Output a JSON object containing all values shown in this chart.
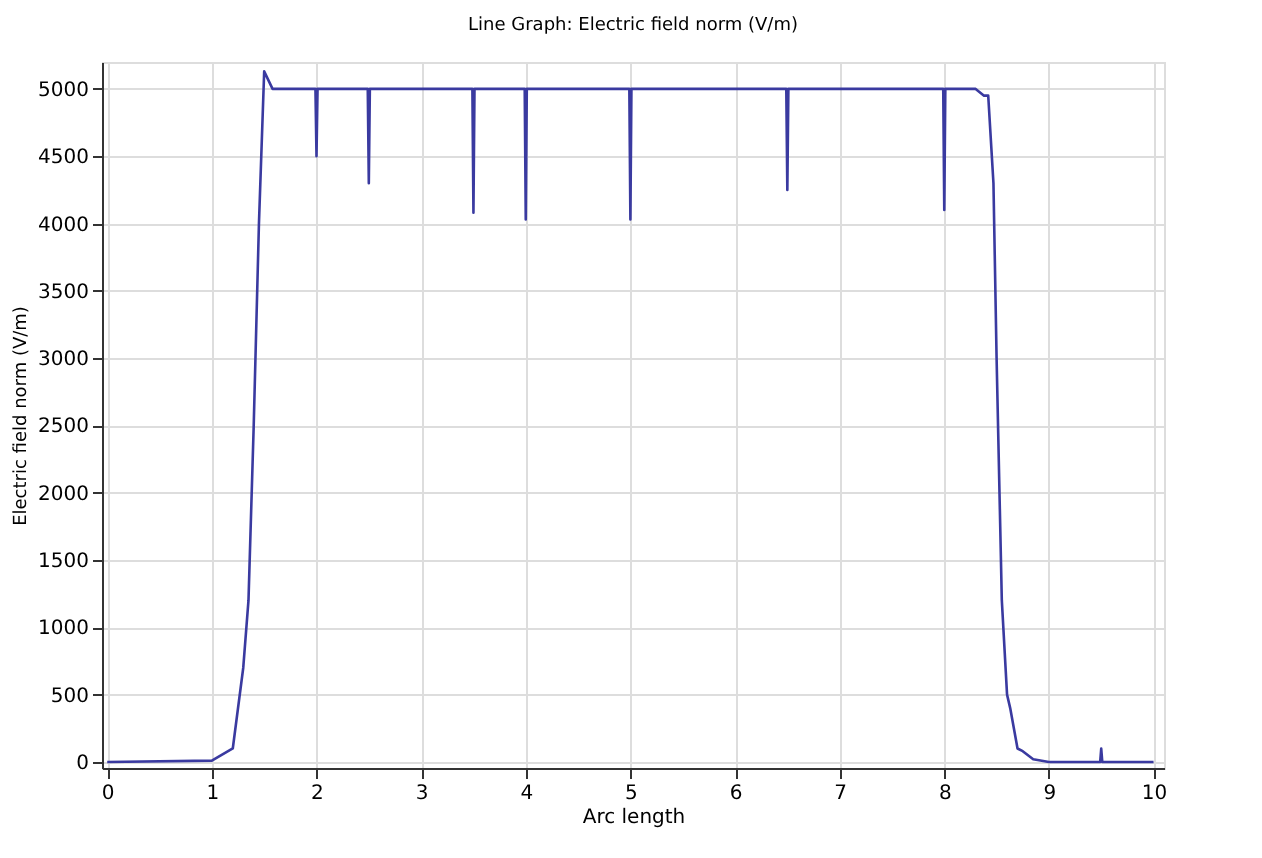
{
  "chart_data": {
    "type": "line",
    "title": "Line Graph: Electric field norm (V/m)",
    "xlabel": "Arc length",
    "ylabel": "Electric field norm (V/m)",
    "series": [
      {
        "color": "#3a3aa0",
        "x": [
          0,
          1,
          1.2,
          1.3,
          1.35,
          1.4,
          1.45,
          1.5,
          1.58,
          1.99,
          2,
          2.01,
          2.49,
          2.5,
          2.51,
          3.49,
          3.5,
          3.51,
          3.99,
          4,
          4.01,
          4.99,
          5,
          5.01,
          6.49,
          6.5,
          6.51,
          7.99,
          8,
          8.01,
          8.3,
          8.38,
          8.42,
          8.47,
          8.5,
          8.55,
          8.6,
          8.63,
          8.7,
          8.75,
          8.85,
          9,
          9.49,
          9.5,
          9.51,
          10
        ],
        "values": [
          0,
          10,
          100,
          700,
          1200,
          2500,
          4000,
          5130,
          5000,
          5000,
          4500,
          5000,
          5000,
          4300,
          5000,
          5000,
          4080,
          5000,
          5000,
          4030,
          5000,
          5000,
          4030,
          5000,
          5000,
          4250,
          5000,
          5000,
          4100,
          5000,
          5000,
          4950,
          4950,
          4300,
          3000,
          1200,
          500,
          400,
          100,
          80,
          20,
          0,
          0,
          100,
          0,
          0
        ]
      }
    ],
    "xlim": [
      -0.05,
      10.1
    ],
    "ylim": [
      -45,
      5200
    ],
    "xticks": [
      0,
      1,
      2,
      3,
      4,
      5,
      6,
      7,
      8,
      9,
      10
    ],
    "yticks": [
      0,
      500,
      1000,
      1500,
      2000,
      2500,
      3000,
      3500,
      4000,
      4500,
      5000
    ],
    "grid": true,
    "line_style": "solid",
    "marker": "none"
  }
}
